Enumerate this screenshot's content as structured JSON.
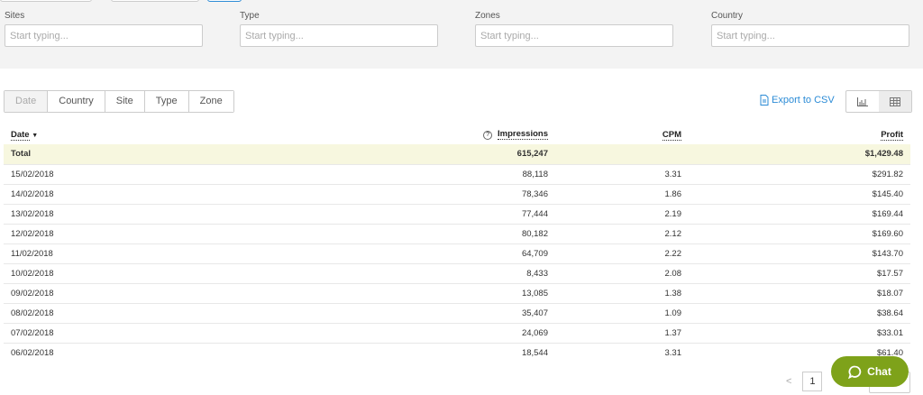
{
  "filters": [
    {
      "label": "Sites",
      "placeholder": "Start typing..."
    },
    {
      "label": "Type",
      "placeholder": "Start typing..."
    },
    {
      "label": "Zones",
      "placeholder": "Start typing..."
    },
    {
      "label": "Country",
      "placeholder": "Start typing..."
    }
  ],
  "group_tabs": [
    "Date",
    "Country",
    "Site",
    "Type",
    "Zone"
  ],
  "active_tab": "Date",
  "export_label": "Export to CSV",
  "view_toggle": {
    "chart_icon": "bar-chart-icon",
    "table_icon": "table-icon",
    "active": "table"
  },
  "table": {
    "columns": [
      "Date",
      "Impressions",
      "CPM",
      "Profit"
    ],
    "sort": "Date descending",
    "total": {
      "label": "Total",
      "impressions": "615,247",
      "cpm": "",
      "profit": "$1,429.48"
    },
    "rows": [
      [
        "15/02/2018",
        "88,118",
        "3.31",
        "$291.82"
      ],
      [
        "14/02/2018",
        "78,346",
        "1.86",
        "$145.40"
      ],
      [
        "13/02/2018",
        "77,444",
        "2.19",
        "$169.44"
      ],
      [
        "12/02/2018",
        "80,182",
        "2.12",
        "$169.60"
      ],
      [
        "11/02/2018",
        "64,709",
        "2.22",
        "$143.70"
      ],
      [
        "10/02/2018",
        "8,433",
        "2.08",
        "$17.57"
      ],
      [
        "09/02/2018",
        "13,085",
        "1.38",
        "$18.07"
      ],
      [
        "08/02/2018",
        "35,407",
        "1.09",
        "$38.64"
      ],
      [
        "07/02/2018",
        "24,069",
        "1.37",
        "$33.01"
      ],
      [
        "06/02/2018",
        "18,544",
        "3.31",
        "$61.40"
      ]
    ]
  },
  "pagination": {
    "prev": "<",
    "current": "1"
  },
  "chat_label": "Chat",
  "colors": {
    "accent": "#2b8bd6",
    "chat": "#7ea21a",
    "total_row": "#f7f7df"
  }
}
